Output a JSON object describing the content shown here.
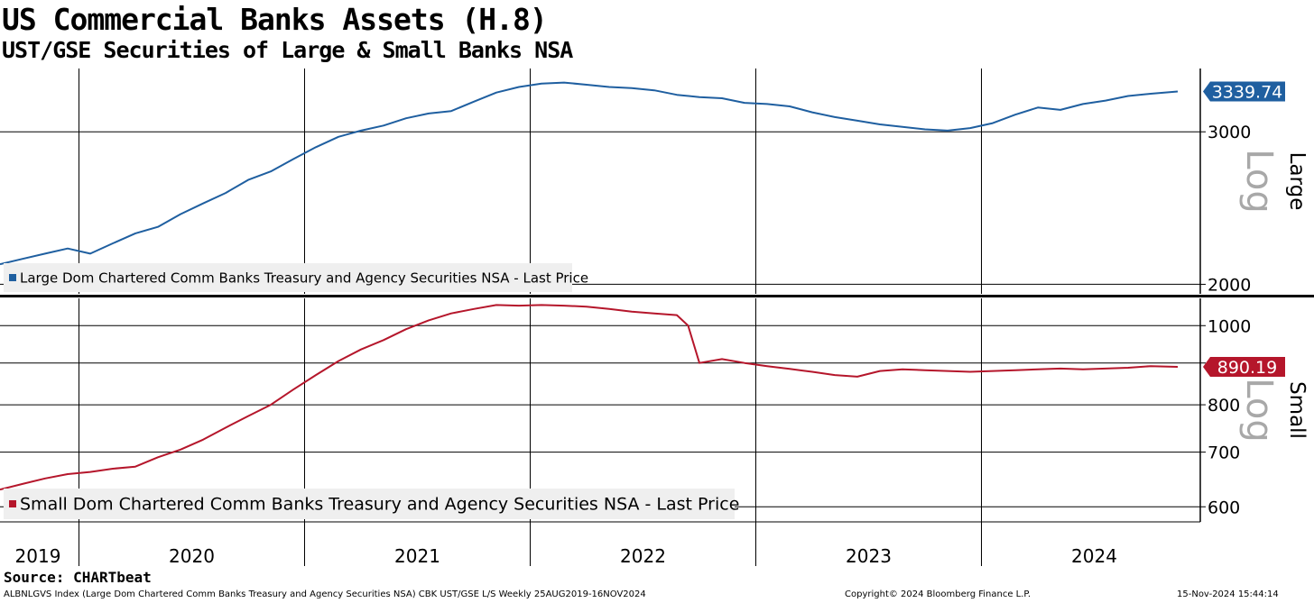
{
  "title": "US Commercial Banks Assets (H.8)",
  "subtitle": "UST/GSE Securities of Large & Small Banks NSA",
  "source": "Source:  CHARTbeat",
  "footer": {
    "left": "ALBNLGVS Index (Large Dom Chartered Comm Banks Treasury and Agency Securities NSA) CBK UST/GSE L/S  Weekly 25AUG2019-16NOV2024",
    "center": "Copyright© 2024 Bloomberg Finance L.P.",
    "right": "15-Nov-2024 15:44:14"
  },
  "colors": {
    "large": "#1f5fa0",
    "small": "#b5162b",
    "grid": "#000000",
    "legend_bg": "#efefef",
    "log_text": "#a8a8a8"
  },
  "chart_data": [
    {
      "type": "line",
      "panel": "Large",
      "scale": "Log",
      "legend": "Large Dom Chartered Comm Banks Treasury and Agency Securities NSA - Last Price",
      "last_value_label": "3339.74",
      "last_value": 3339.74,
      "ylim": [
        1950,
        3550
      ],
      "yticks": [
        2000,
        3000
      ],
      "x": [
        2019.65,
        2019.75,
        2019.85,
        2019.95,
        2020.05,
        2020.15,
        2020.25,
        2020.35,
        2020.45,
        2020.55,
        2020.65,
        2020.75,
        2020.85,
        2020.95,
        2021.05,
        2021.15,
        2021.25,
        2021.35,
        2021.45,
        2021.55,
        2021.65,
        2021.75,
        2021.85,
        2021.95,
        2022.05,
        2022.15,
        2022.25,
        2022.35,
        2022.45,
        2022.55,
        2022.65,
        2022.75,
        2022.85,
        2022.95,
        2023.05,
        2023.15,
        2023.25,
        2023.35,
        2023.45,
        2023.55,
        2023.65,
        2023.75,
        2023.85,
        2023.95,
        2024.05,
        2024.15,
        2024.25,
        2024.35,
        2024.45,
        2024.55,
        2024.65,
        2024.75,
        2024.87
      ],
      "values": [
        2110,
        2140,
        2170,
        2200,
        2170,
        2230,
        2290,
        2330,
        2410,
        2480,
        2550,
        2640,
        2700,
        2790,
        2880,
        2960,
        3010,
        3050,
        3110,
        3150,
        3170,
        3250,
        3330,
        3380,
        3410,
        3420,
        3400,
        3380,
        3370,
        3350,
        3310,
        3290,
        3280,
        3240,
        3230,
        3210,
        3160,
        3120,
        3090,
        3060,
        3040,
        3020,
        3010,
        3030,
        3070,
        3140,
        3200,
        3180,
        3230,
        3260,
        3300,
        3320,
        3339.74
      ]
    },
    {
      "type": "line",
      "panel": "Small",
      "scale": "Log",
      "legend": "Small Dom Chartered Comm Banks Treasury and Agency Securities NSA - Last Price",
      "last_value_label": "890.19",
      "last_value": 890.19,
      "ylim": [
        575,
        1080
      ],
      "yticks": [
        600,
        700,
        800,
        900,
        1000
      ],
      "ytick_labels": [
        "600",
        "700",
        "800",
        "1000"
      ],
      "x": [
        2019.65,
        2019.75,
        2019.85,
        2019.95,
        2020.05,
        2020.15,
        2020.25,
        2020.35,
        2020.45,
        2020.55,
        2020.65,
        2020.75,
        2020.85,
        2020.95,
        2021.05,
        2021.15,
        2021.25,
        2021.35,
        2021.45,
        2021.55,
        2021.65,
        2021.75,
        2021.85,
        2021.95,
        2022.05,
        2022.15,
        2022.25,
        2022.35,
        2022.45,
        2022.55,
        2022.65,
        2022.7,
        2022.75,
        2022.85,
        2022.95,
        2023.05,
        2023.15,
        2023.25,
        2023.35,
        2023.45,
        2023.55,
        2023.65,
        2023.75,
        2023.85,
        2023.95,
        2024.05,
        2024.15,
        2024.25,
        2024.35,
        2024.45,
        2024.55,
        2024.65,
        2024.75,
        2024.87
      ],
      "values": [
        630,
        640,
        650,
        658,
        662,
        668,
        672,
        690,
        705,
        725,
        750,
        775,
        800,
        835,
        870,
        905,
        935,
        960,
        990,
        1015,
        1035,
        1048,
        1060,
        1058,
        1060,
        1058,
        1055,
        1048,
        1040,
        1035,
        1030,
        1000,
        900,
        910,
        900,
        892,
        885,
        878,
        870,
        866,
        880,
        884,
        882,
        880,
        878,
        880,
        882,
        884,
        886,
        884,
        886,
        888,
        892,
        890.19
      ]
    }
  ],
  "x_axis": {
    "labels": [
      "2019",
      "2020",
      "2021",
      "2022",
      "2023",
      "2024"
    ],
    "label_positions": [
      2019.65,
      2020.5,
      2021.5,
      2022.5,
      2023.5,
      2024.5
    ],
    "gridlines": [
      2020.0,
      2021.0,
      2022.0,
      2023.0,
      2024.0
    ],
    "range": [
      2019.65,
      2024.97
    ]
  }
}
